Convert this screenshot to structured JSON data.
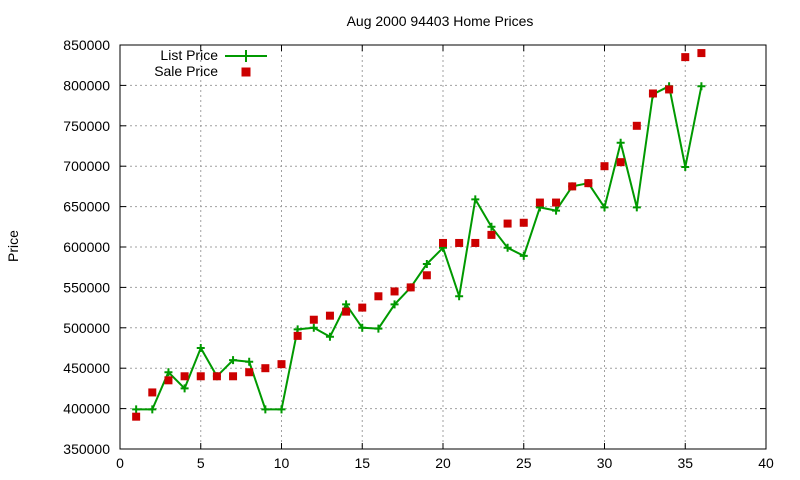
{
  "chart_data": {
    "type": "line",
    "title": "Aug 2000 94403 Home Prices",
    "xlabel": "",
    "ylabel": "Price",
    "xlim": [
      0,
      40
    ],
    "ylim": [
      350000,
      850000
    ],
    "xticks": [
      0,
      5,
      10,
      15,
      20,
      25,
      30,
      35,
      40
    ],
    "yticks": [
      350000,
      400000,
      450000,
      500000,
      550000,
      600000,
      650000,
      700000,
      750000,
      800000,
      850000
    ],
    "grid": true,
    "legend": "top-left",
    "series": [
      {
        "name": "List Price",
        "style": "line-plus",
        "color": "#009900",
        "x": [
          1,
          2,
          3,
          4,
          5,
          6,
          7,
          8,
          9,
          10,
          11,
          12,
          13,
          14,
          15,
          16,
          17,
          18,
          19,
          20,
          21,
          22,
          23,
          24,
          25,
          26,
          27,
          28,
          29,
          30,
          31,
          32,
          33,
          34,
          35,
          36
        ],
        "values": [
          399000,
          399000,
          445000,
          425000,
          475000,
          440000,
          460000,
          458000,
          399000,
          399000,
          498000,
          500000,
          489000,
          529000,
          500000,
          499000,
          529000,
          550000,
          579000,
          599000,
          539000,
          659000,
          625000,
          599000,
          589000,
          649000,
          645000,
          675000,
          679000,
          649000,
          729000,
          649000,
          789000,
          799000,
          699000,
          799000
        ]
      },
      {
        "name": "Sale Price",
        "style": "square-points",
        "color": "#cc0000",
        "x": [
          1,
          2,
          3,
          4,
          5,
          6,
          7,
          8,
          9,
          10,
          11,
          12,
          13,
          14,
          15,
          16,
          17,
          18,
          19,
          20,
          21,
          22,
          23,
          24,
          25,
          26,
          27,
          28,
          29,
          30,
          31,
          32,
          33,
          34,
          35,
          36
        ],
        "values": [
          390000,
          420000,
          435000,
          440000,
          440000,
          440000,
          440000,
          445000,
          450000,
          455000,
          490000,
          510000,
          515000,
          520000,
          525000,
          539000,
          545000,
          550000,
          565000,
          605000,
          605000,
          605000,
          615000,
          629000,
          630000,
          655000,
          655000,
          675000,
          679000,
          700000,
          705000,
          750000,
          790000,
          795000,
          835000,
          840000
        ]
      }
    ]
  }
}
